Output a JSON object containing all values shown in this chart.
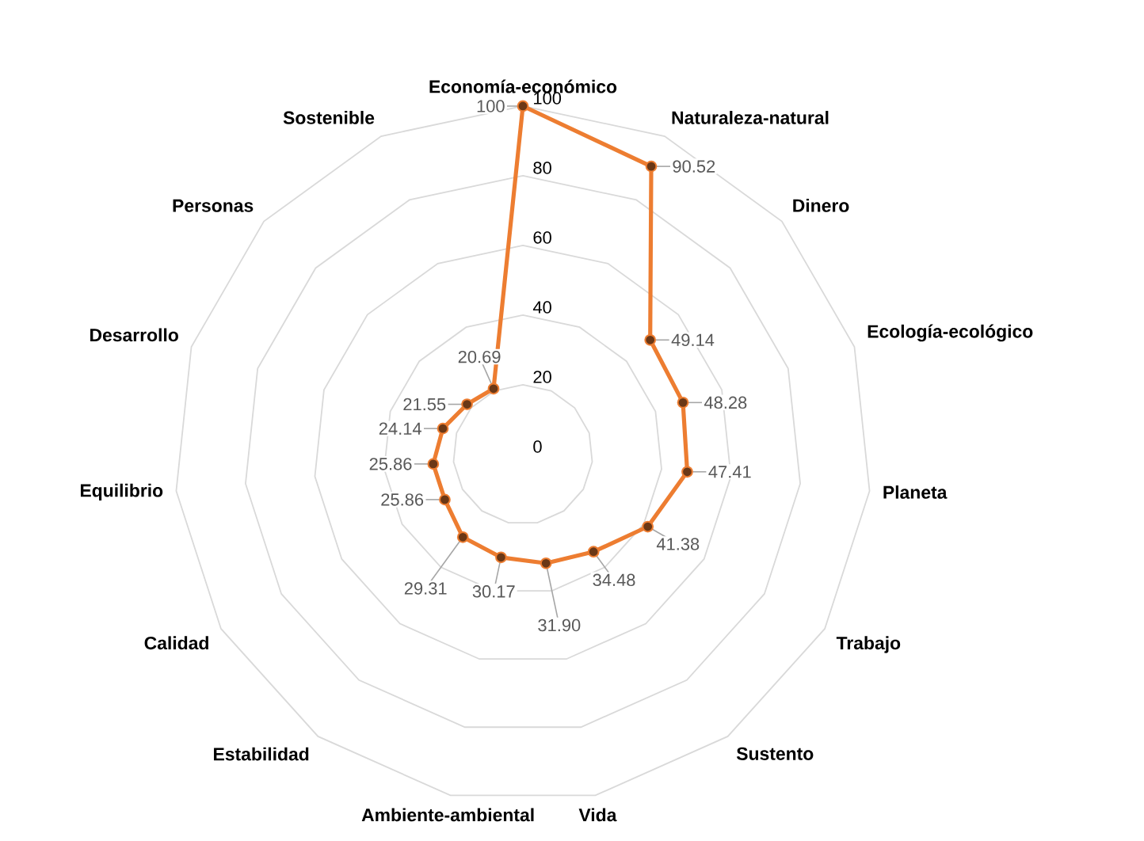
{
  "chart_data": {
    "type": "radar",
    "categories": [
      "Economía-económico",
      "Naturaleza-natural",
      "Dinero",
      "Ecología-ecológico",
      "Planeta",
      "Trabajo",
      "Sustento",
      "Vida",
      "Ambiente-ambiental",
      "Estabilidad",
      "Calidad",
      "Equilibrio",
      "Desarrollo",
      "Personas",
      "Sostenible"
    ],
    "series": [
      {
        "color": "#ed7d31",
        "values": [
          100,
          90.52,
          49.14,
          48.28,
          47.41,
          41.38,
          34.48,
          31.9,
          30.17,
          29.31,
          25.86,
          25.86,
          24.14,
          21.55,
          20.69
        ],
        "value_labels": [
          "100",
          "90.52",
          "49.14",
          "48.28",
          "47.41",
          "41.38",
          "34.48",
          "31.90",
          "30.17",
          "29.31",
          "25.86",
          "25.86",
          "24.14",
          "21.55",
          "20.69"
        ]
      }
    ],
    "ylim": [
      0,
      100
    ],
    "yticks": [
      0,
      20,
      40,
      60,
      80,
      100
    ],
    "grid": true,
    "marker": "circle"
  }
}
